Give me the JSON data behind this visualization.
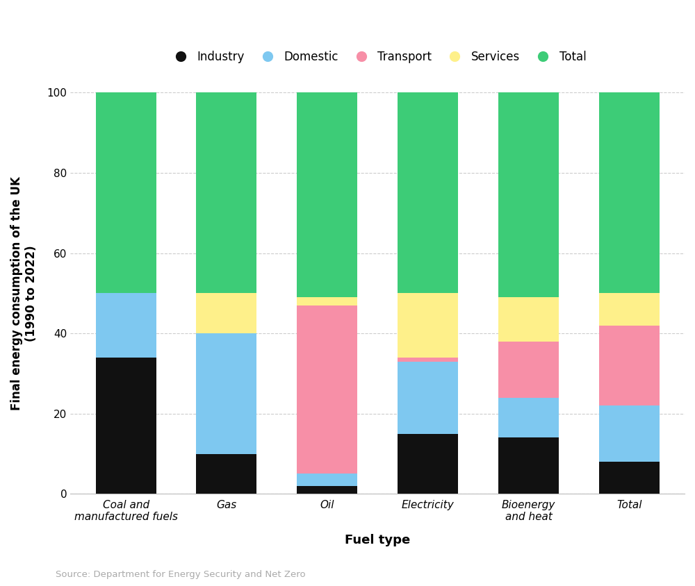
{
  "categories": [
    "Coal and\nmanufactured fuels",
    "Gas",
    "Oil",
    "Electricity",
    "Bioenergy\nand heat",
    "Total"
  ],
  "series": {
    "Industry": [
      34,
      10,
      2,
      15,
      14,
      8
    ],
    "Domestic": [
      16,
      30,
      3,
      18,
      10,
      14
    ],
    "Transport": [
      0,
      0,
      42,
      1,
      14,
      20
    ],
    "Services": [
      0,
      10,
      2,
      16,
      11,
      8
    ],
    "Total": [
      50,
      50,
      51,
      50,
      51,
      50
    ]
  },
  "colors": {
    "Industry": "#111111",
    "Domestic": "#7ec8f0",
    "Transport": "#f78fa7",
    "Services": "#fef08a",
    "Total": "#3dcc77"
  },
  "ylabel": "Final energy consumption of the UK\n(1990 to 2022)",
  "xlabel": "Fuel type",
  "source": "Source: Department for Energy Security and Net Zero",
  "ylim": [
    0,
    100
  ],
  "yticks": [
    0,
    20,
    40,
    60,
    80,
    100
  ],
  "background_color": "#ffffff",
  "grid_color": "#cccccc"
}
